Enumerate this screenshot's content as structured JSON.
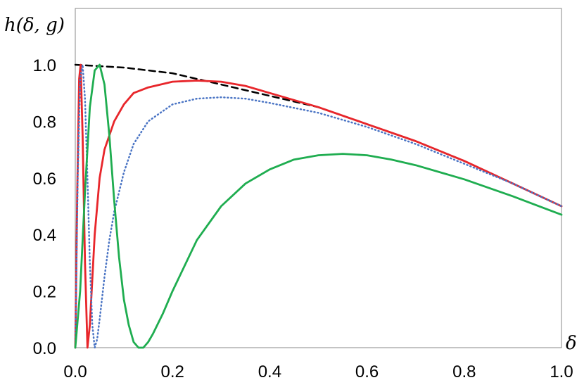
{
  "chart_data": {
    "type": "line",
    "title": "",
    "xlabel": "δ",
    "ylabel": "h(δ, g)",
    "xlim": [
      0,
      1
    ],
    "ylim": [
      0,
      1.0
    ],
    "x_ticks": [
      "0.0",
      "0.2",
      "0.4",
      "0.6",
      "0.8",
      "1.0"
    ],
    "y_ticks": [
      "0.0",
      "0.2",
      "0.4",
      "0.6",
      "0.8",
      "1.0"
    ],
    "grid": false,
    "legend": "none",
    "series": [
      {
        "color": "#000000",
        "style": "dashed",
        "x": [
          0,
          0.1,
          0.2,
          0.3,
          0.4,
          0.5,
          0.6,
          0.7,
          0.8,
          0.9,
          1.0
        ],
        "y": [
          1.0,
          0.99,
          0.97,
          0.93,
          0.89,
          0.85,
          0.79,
          0.73,
          0.66,
          0.58,
          0.5
        ]
      },
      {
        "color": "#e8262b",
        "style": "solid",
        "x": [
          0,
          0.004,
          0.008,
          0.011,
          0.015,
          0.02,
          0.025,
          0.03,
          0.04,
          0.05,
          0.06,
          0.08,
          0.1,
          0.12,
          0.15,
          0.2,
          0.25,
          0.3,
          0.35,
          0.4,
          0.5,
          0.6,
          0.7,
          0.8,
          0.9,
          1.0
        ],
        "y": [
          0,
          0.55,
          0.95,
          1.0,
          0.75,
          0.3,
          0.0,
          0.08,
          0.4,
          0.6,
          0.7,
          0.8,
          0.86,
          0.9,
          0.92,
          0.94,
          0.944,
          0.94,
          0.925,
          0.9,
          0.85,
          0.79,
          0.73,
          0.66,
          0.58,
          0.5
        ]
      },
      {
        "color": "#4a74c4",
        "style": "dotted",
        "x": [
          0,
          0.005,
          0.01,
          0.015,
          0.02,
          0.025,
          0.03,
          0.035,
          0.04,
          0.045,
          0.05,
          0.06,
          0.07,
          0.08,
          0.1,
          0.12,
          0.15,
          0.2,
          0.25,
          0.3,
          0.35,
          0.4,
          0.5,
          0.6,
          0.7,
          0.8,
          0.9,
          1.0
        ],
        "y": [
          0,
          0.6,
          0.95,
          1.0,
          0.88,
          0.6,
          0.3,
          0.08,
          0.0,
          0.03,
          0.1,
          0.25,
          0.38,
          0.48,
          0.62,
          0.72,
          0.8,
          0.86,
          0.88,
          0.885,
          0.88,
          0.865,
          0.83,
          0.78,
          0.72,
          0.65,
          0.58,
          0.5
        ]
      },
      {
        "color": "#1fad50",
        "style": "solid",
        "x": [
          0,
          0.01,
          0.02,
          0.03,
          0.04,
          0.05,
          0.06,
          0.07,
          0.08,
          0.09,
          0.1,
          0.11,
          0.12,
          0.13,
          0.14,
          0.15,
          0.16,
          0.18,
          0.2,
          0.25,
          0.3,
          0.35,
          0.4,
          0.45,
          0.5,
          0.55,
          0.6,
          0.65,
          0.7,
          0.8,
          0.9,
          1.0
        ],
        "y": [
          0,
          0.2,
          0.55,
          0.85,
          0.98,
          1.0,
          0.93,
          0.75,
          0.52,
          0.32,
          0.17,
          0.08,
          0.02,
          0.0,
          0.0,
          0.02,
          0.05,
          0.12,
          0.2,
          0.38,
          0.5,
          0.58,
          0.63,
          0.665,
          0.68,
          0.685,
          0.68,
          0.665,
          0.645,
          0.595,
          0.535,
          0.47
        ]
      }
    ]
  }
}
